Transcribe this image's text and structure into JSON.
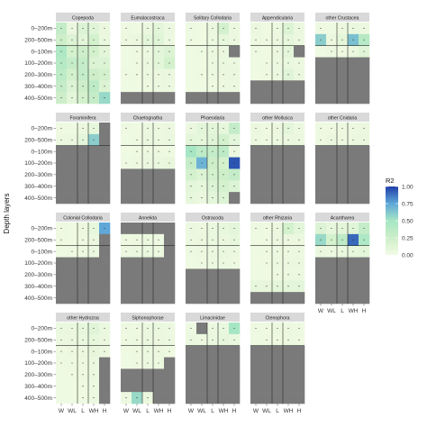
{
  "chart_data": {
    "type": "heatmap",
    "ylabel": "Depth layers",
    "y_tick_labels": [
      "0–200m",
      "200–500m",
      "0–100m",
      "100–200m",
      "200–300m",
      "300–400m",
      "400–500m"
    ],
    "x_tick_labels": [
      "W",
      "WL",
      "L",
      "WH",
      "H"
    ],
    "legend": {
      "title": "R2",
      "ticks": [
        "1.00",
        "0.75",
        "0.50",
        "0.25",
        "0.00"
      ],
      "range": [
        0,
        1
      ],
      "placement": "right"
    },
    "colors": {
      "low": "#f2fbe4",
      "mid": "#a6e6c4",
      "high": "#1f3fa8",
      "missing": "#7a7a7a",
      "strip": "#d9d9d9",
      "panel_bg": "#ffffff"
    },
    "panels": [
      {
        "name": "Copepoda",
        "values": [
          [
            0.3,
            0.05,
            0.15,
            0.12,
            0.05
          ],
          [
            0.25,
            0.15,
            0.1,
            0.2,
            0.06
          ],
          [
            0.45,
            0.2,
            0.25,
            0.2,
            0.1
          ],
          [
            0.4,
            0.3,
            0.3,
            0.15,
            0.15
          ],
          [
            0.35,
            0.2,
            0.3,
            0.25,
            0.2
          ],
          [
            0.3,
            0.15,
            0.25,
            0.35,
            0.15
          ],
          [
            0.25,
            0.1,
            0.2,
            0.3,
            0.55
          ]
        ]
      },
      {
        "name": "Eumalacostraca",
        "values": [
          [
            0.03,
            0.02,
            0.05,
            0.1,
            0.04
          ],
          [
            0.04,
            0.05,
            0.1,
            0.12,
            0.03
          ],
          [
            0.02,
            0.03,
            0.04,
            0.1,
            0.15
          ],
          [
            0.02,
            0.03,
            0.05,
            0.1,
            0.2
          ],
          [
            0.03,
            0.03,
            0.04,
            0.05,
            0.05
          ],
          [
            0.02,
            0.02,
            0.03,
            0.04,
            0.04
          ],
          [
            null,
            null,
            null,
            null,
            null
          ]
        ]
      },
      {
        "name": "Solitary Collodaria",
        "values": [
          [
            0.03,
            0.02,
            0.05,
            0.2,
            0.04
          ],
          [
            0.03,
            0.02,
            0.04,
            0.08,
            0.05
          ],
          [
            0.02,
            0.03,
            0.05,
            0.05,
            null
          ],
          [
            0.02,
            0.02,
            0.04,
            0.06,
            0.04
          ],
          [
            0.02,
            0.03,
            0.04,
            0.05,
            0.05
          ],
          [
            0.02,
            0.02,
            0.03,
            0.04,
            0.04
          ],
          [
            null,
            null,
            null,
            null,
            null
          ]
        ]
      },
      {
        "name": "Appendicularia",
        "values": [
          [
            0.05,
            0.02,
            0.04,
            0.15,
            0.05
          ],
          [
            0.04,
            0.03,
            0.05,
            0.08,
            0.04
          ],
          [
            0.03,
            0.02,
            0.05,
            0.1,
            null
          ],
          [
            0.02,
            0.03,
            0.04,
            0.06,
            0.04
          ],
          [
            0.02,
            0.03,
            0.04,
            0.12,
            0.05
          ],
          [
            null,
            null,
            null,
            null,
            null
          ],
          [
            null,
            null,
            null,
            null,
            null
          ]
        ]
      },
      {
        "name": "other Crustacea",
        "values": [
          [
            0.03,
            0.02,
            0.05,
            0.06,
            0.04
          ],
          [
            0.6,
            0.05,
            0.1,
            0.65,
            0.4
          ],
          [
            0.02,
            0.04,
            0.03,
            0.05,
            0.12
          ],
          [
            null,
            null,
            null,
            null,
            null
          ],
          [
            null,
            null,
            null,
            null,
            null
          ],
          [
            null,
            null,
            null,
            null,
            null
          ],
          [
            null,
            null,
            null,
            null,
            null
          ]
        ]
      },
      {
        "name": "Foraminifera",
        "values": [
          [
            0.03,
            0.02,
            0.05,
            0.08,
            null
          ],
          [
            0.04,
            0.05,
            0.1,
            0.6,
            null
          ],
          [
            null,
            null,
            null,
            null,
            null
          ],
          [
            null,
            null,
            null,
            null,
            null
          ],
          [
            null,
            null,
            null,
            null,
            null
          ],
          [
            null,
            null,
            null,
            null,
            null
          ],
          [
            null,
            null,
            null,
            null,
            null
          ]
        ]
      },
      {
        "name": "Chaetognatha",
        "values": [
          [
            0.03,
            0.02,
            0.05,
            0.04,
            0.05
          ],
          [
            0.02,
            0.03,
            0.05,
            0.04,
            0.06
          ],
          [
            0.02,
            0.03,
            0.04,
            0.04,
            0.03
          ],
          [
            0.03,
            0.04,
            0.05,
            0.06,
            0.07
          ],
          [
            null,
            null,
            null,
            null,
            null
          ],
          [
            null,
            null,
            null,
            null,
            null
          ],
          [
            null,
            null,
            null,
            null,
            null
          ]
        ]
      },
      {
        "name": "Phaeodaria",
        "values": [
          [
            0.05,
            0.1,
            0.1,
            0.08,
            0.3
          ],
          [
            0.1,
            0.08,
            0.12,
            0.2,
            0.1
          ],
          [
            0.5,
            0.35,
            0.3,
            0.35,
            0.05
          ],
          [
            0.3,
            0.7,
            0.25,
            0.2,
            0.95
          ],
          [
            0.2,
            0.15,
            0.2,
            0.25,
            0.3
          ],
          [
            0.1,
            0.08,
            0.15,
            0.2,
            0.15
          ],
          [
            0.08,
            0.05,
            0.1,
            0.15,
            null
          ]
        ]
      },
      {
        "name": "other Mollusca",
        "values": [
          [
            0.05,
            0.03,
            0.05,
            0.1,
            0.04
          ],
          [
            0.04,
            0.03,
            0.04,
            0.05,
            0.05
          ],
          [
            null,
            null,
            null,
            null,
            null
          ],
          [
            null,
            null,
            null,
            null,
            null
          ],
          [
            null,
            null,
            null,
            null,
            null
          ],
          [
            null,
            null,
            null,
            null,
            null
          ],
          [
            null,
            null,
            null,
            null,
            null
          ]
        ]
      },
      {
        "name": "other Cnidaria",
        "values": [
          [
            0.03,
            0.03,
            0.04,
            0.04,
            0.05
          ],
          [
            0.03,
            0.05,
            0.04,
            0.05,
            0.05
          ],
          [
            null,
            null,
            null,
            null,
            null
          ],
          [
            null,
            null,
            null,
            null,
            null
          ],
          [
            null,
            null,
            null,
            null,
            null
          ],
          [
            null,
            null,
            null,
            null,
            null
          ],
          [
            null,
            null,
            null,
            null,
            null
          ]
        ]
      },
      {
        "name": "Colonial Collodaria",
        "values": [
          [
            0.03,
            0.02,
            0.05,
            0.08,
            0.75
          ],
          [
            0.03,
            0.02,
            0.04,
            0.05,
            null
          ],
          [
            0.02,
            0.03,
            0.04,
            0.05,
            null
          ],
          [
            null,
            null,
            null,
            null,
            null
          ],
          [
            null,
            null,
            null,
            null,
            null
          ],
          [
            null,
            null,
            null,
            null,
            null
          ],
          [
            null,
            null,
            null,
            null,
            null
          ]
        ]
      },
      {
        "name": "Annelida",
        "values": [
          [
            null,
            null,
            null,
            null,
            null
          ],
          [
            0.03,
            0.04,
            0.05,
            0.03,
            null
          ],
          [
            0.04,
            0.05,
            0.06,
            0.04,
            null
          ],
          [
            null,
            null,
            null,
            null,
            null
          ],
          [
            null,
            null,
            null,
            null,
            null
          ],
          [
            null,
            null,
            null,
            null,
            null
          ],
          [
            null,
            null,
            null,
            null,
            null
          ]
        ]
      },
      {
        "name": "Ostracoda",
        "values": [
          [
            0.05,
            0.04,
            0.06,
            0.08,
            0.1
          ],
          [
            0.04,
            0.05,
            0.06,
            0.05,
            0.08
          ],
          [
            0.03,
            0.04,
            0.05,
            0.06,
            0.04
          ],
          [
            0.02,
            0.03,
            0.04,
            0.04,
            0.03
          ],
          [
            null,
            null,
            null,
            null,
            null
          ],
          [
            null,
            null,
            null,
            null,
            null
          ],
          [
            null,
            null,
            null,
            null,
            null
          ]
        ]
      },
      {
        "name": "other Rhizaria",
        "values": [
          [
            0.03,
            0.03,
            0.05,
            0.2,
            0.1
          ],
          [
            0.02,
            0.03,
            0.05,
            0.05,
            0.05
          ],
          [
            0.02,
            0.03,
            0.04,
            0.04,
            0.04
          ],
          [
            0.02,
            0.03,
            0.04,
            0.05,
            0.05
          ],
          [
            0.02,
            0.02,
            0.03,
            0.04,
            0.04
          ],
          [
            0.08,
            0.07,
            0.1,
            0.1,
            0.1
          ],
          [
            null,
            null,
            null,
            null,
            null
          ]
        ]
      },
      {
        "name": "Acantharea",
        "values": [
          [
            0.15,
            0.08,
            0.1,
            0.12,
            0.3
          ],
          [
            0.55,
            0.2,
            0.35,
            0.9,
            0.45
          ],
          [
            0.05,
            0.04,
            0.06,
            0.08,
            0.1
          ],
          [
            null,
            null,
            null,
            null,
            null
          ],
          [
            null,
            null,
            null,
            null,
            null
          ],
          [
            null,
            null,
            null,
            null,
            null
          ],
          [
            null,
            null,
            null,
            null,
            null
          ]
        ]
      },
      {
        "name": "other Hydrozoa",
        "values": [
          [
            0.06,
            0.05,
            0.08,
            0.12,
            0.06
          ],
          [
            0.04,
            0.05,
            0.06,
            0.08,
            0.05
          ],
          [
            0.03,
            0.04,
            0.05,
            0.07,
            0.04
          ],
          [
            0.03,
            0.03,
            0.04,
            0.06,
            null
          ],
          [
            0.02,
            0.03,
            0.04,
            0.05,
            null
          ],
          [
            0.02,
            0.02,
            0.03,
            0.04,
            null
          ],
          [
            0.02,
            0.02,
            0.03,
            0.04,
            null
          ]
        ]
      },
      {
        "name": "Siphonophorae",
        "values": [
          [
            0.04,
            0.03,
            0.05,
            0.06,
            0.04
          ],
          [
            0.03,
            0.04,
            0.05,
            0.05,
            0.04
          ],
          [
            0.02,
            0.03,
            0.04,
            0.05,
            0.03
          ],
          [
            0.02,
            0.03,
            0.04,
            0.04,
            null
          ],
          [
            null,
            null,
            null,
            null,
            null
          ],
          [
            null,
            null,
            null,
            null,
            null
          ],
          [
            0.04,
            0.55,
            0.05,
            null,
            null
          ]
        ]
      },
      {
        "name": "Limacinidae",
        "values": [
          [
            0.03,
            null,
            0.04,
            0.06,
            0.5
          ],
          [
            0.05,
            0.04,
            0.06,
            0.08,
            0.06
          ],
          [
            null,
            null,
            null,
            null,
            null
          ],
          [
            null,
            null,
            null,
            null,
            null
          ],
          [
            null,
            null,
            null,
            null,
            null
          ],
          [
            null,
            null,
            null,
            null,
            null
          ],
          [
            null,
            null,
            null,
            null,
            null
          ]
        ]
      },
      {
        "name": "Ctenophora",
        "values": [
          [
            0.03,
            0.03,
            0.04,
            0.04,
            0.03
          ],
          [
            0.02,
            0.03,
            0.03,
            0.04,
            0.03
          ],
          [
            null,
            null,
            null,
            null,
            null
          ],
          [
            null,
            null,
            null,
            null,
            null
          ],
          [
            null,
            null,
            null,
            null,
            null
          ],
          [
            null,
            null,
            null,
            null,
            null
          ],
          [
            null,
            null,
            null,
            null,
            null
          ]
        ]
      }
    ]
  }
}
